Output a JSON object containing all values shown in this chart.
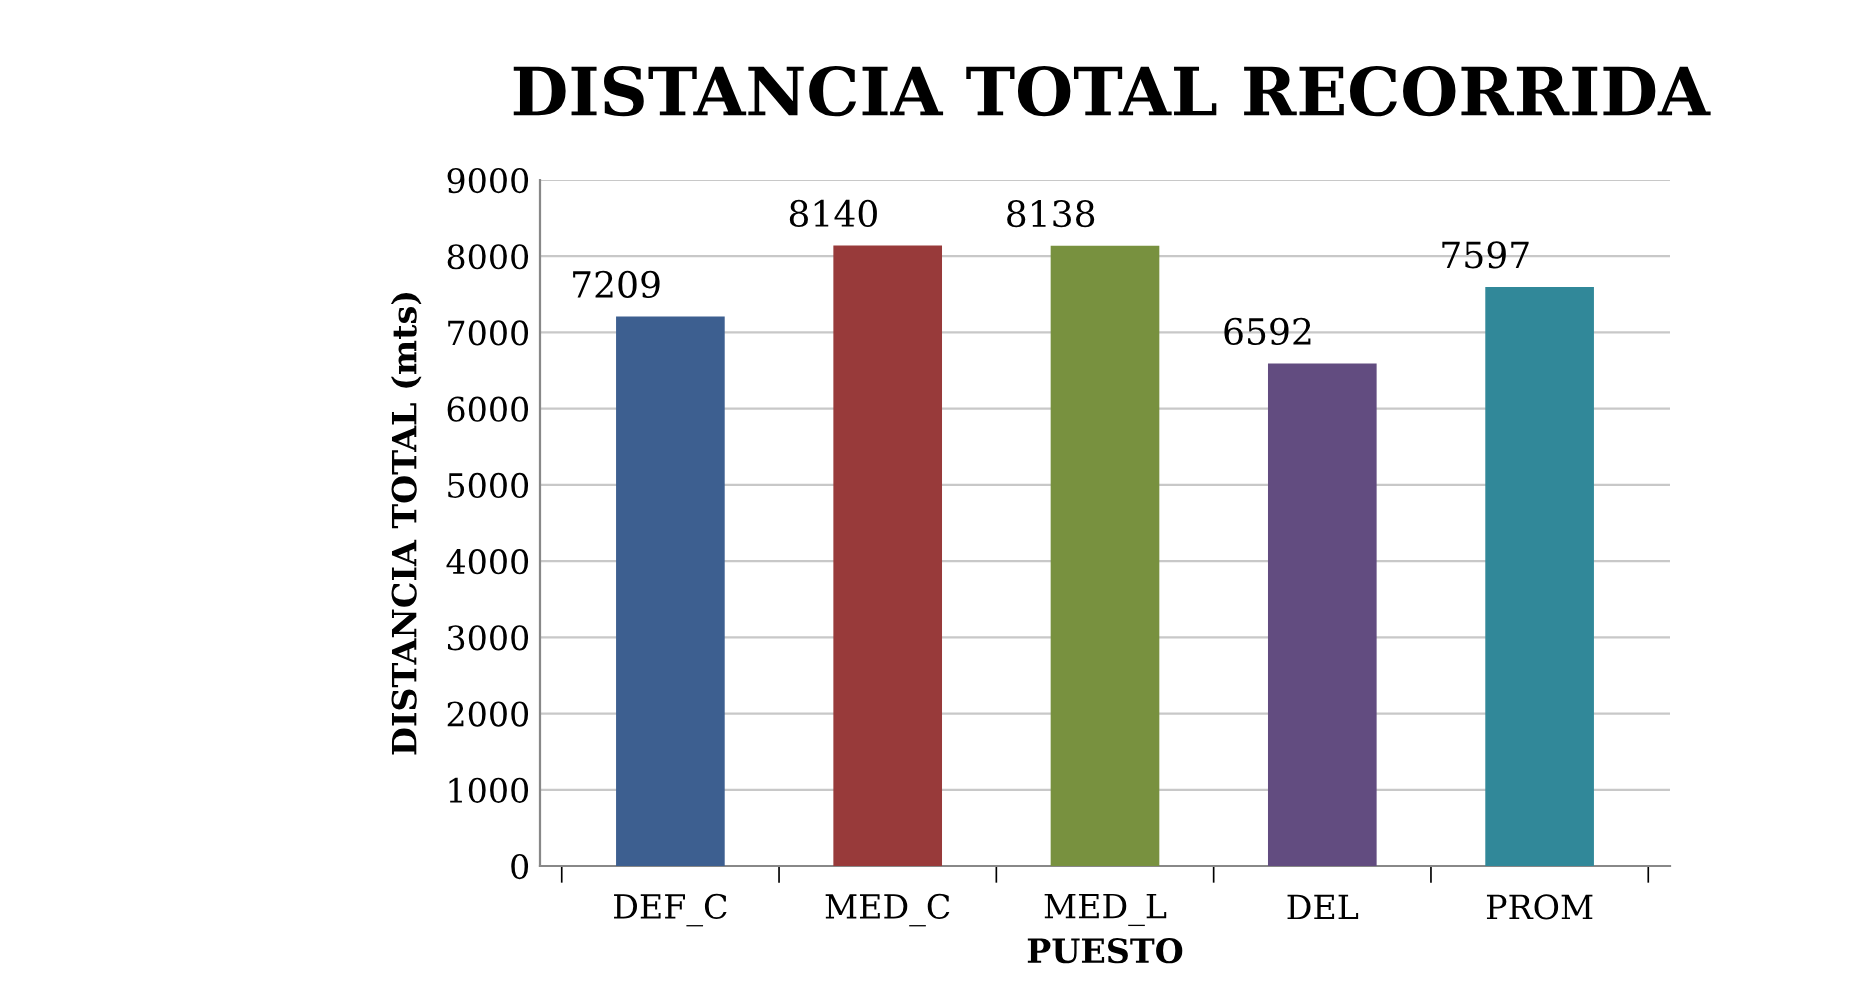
{
  "chart_data": {
    "type": "bar",
    "title": "DISTANCIA TOTAL RECORRIDA",
    "xlabel": "PUESTO",
    "ylabel": "DISTANCIA TOTAL (mts)",
    "categories": [
      "DEF_C",
      "MED_C",
      "MED_L",
      "DEL",
      "PROM"
    ],
    "values": [
      7209,
      8140,
      8138,
      6592,
      7597
    ],
    "colors": [
      "#3d5f90",
      "#983a3a",
      "#78913f",
      "#624c80",
      "#318899"
    ],
    "ylim": [
      0,
      9000
    ],
    "yticks": [
      0,
      1000,
      2000,
      3000,
      4000,
      5000,
      6000,
      7000,
      8000,
      9000
    ],
    "grid": "y",
    "data_labels": true
  }
}
